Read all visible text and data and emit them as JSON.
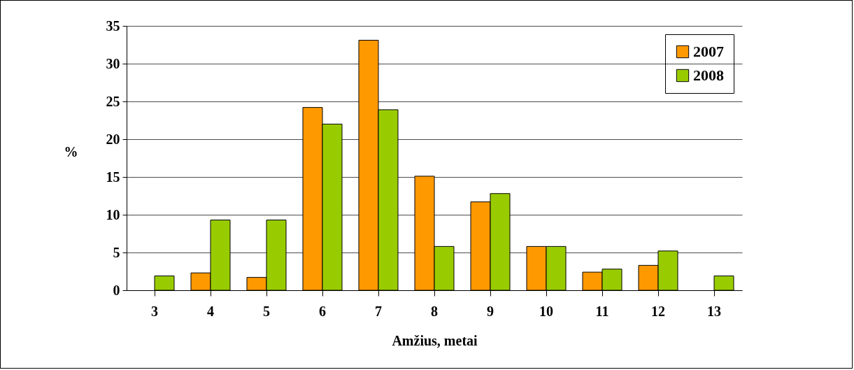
{
  "chart_data": {
    "type": "bar",
    "xlabel": "Amžius, metai",
    "ylabel": "%",
    "categories": [
      "3",
      "4",
      "5",
      "6",
      "7",
      "8",
      "9",
      "10",
      "11",
      "12",
      "13"
    ],
    "series": [
      {
        "name": "2007",
        "color": "#ff9900",
        "values": [
          null,
          2.3,
          1.7,
          24.2,
          33.1,
          15.1,
          11.7,
          5.8,
          2.4,
          3.3,
          null
        ]
      },
      {
        "name": "2008",
        "color": "#99cc00",
        "values": [
          1.9,
          9.3,
          9.3,
          22,
          23.9,
          5.8,
          12.8,
          5.8,
          2.8,
          5.2,
          1.9
        ]
      }
    ],
    "ylim": [
      0,
      35
    ],
    "yticks": [
      0,
      5,
      10,
      15,
      20,
      25,
      30,
      35
    ],
    "grid": "y",
    "legend": "top right"
  }
}
